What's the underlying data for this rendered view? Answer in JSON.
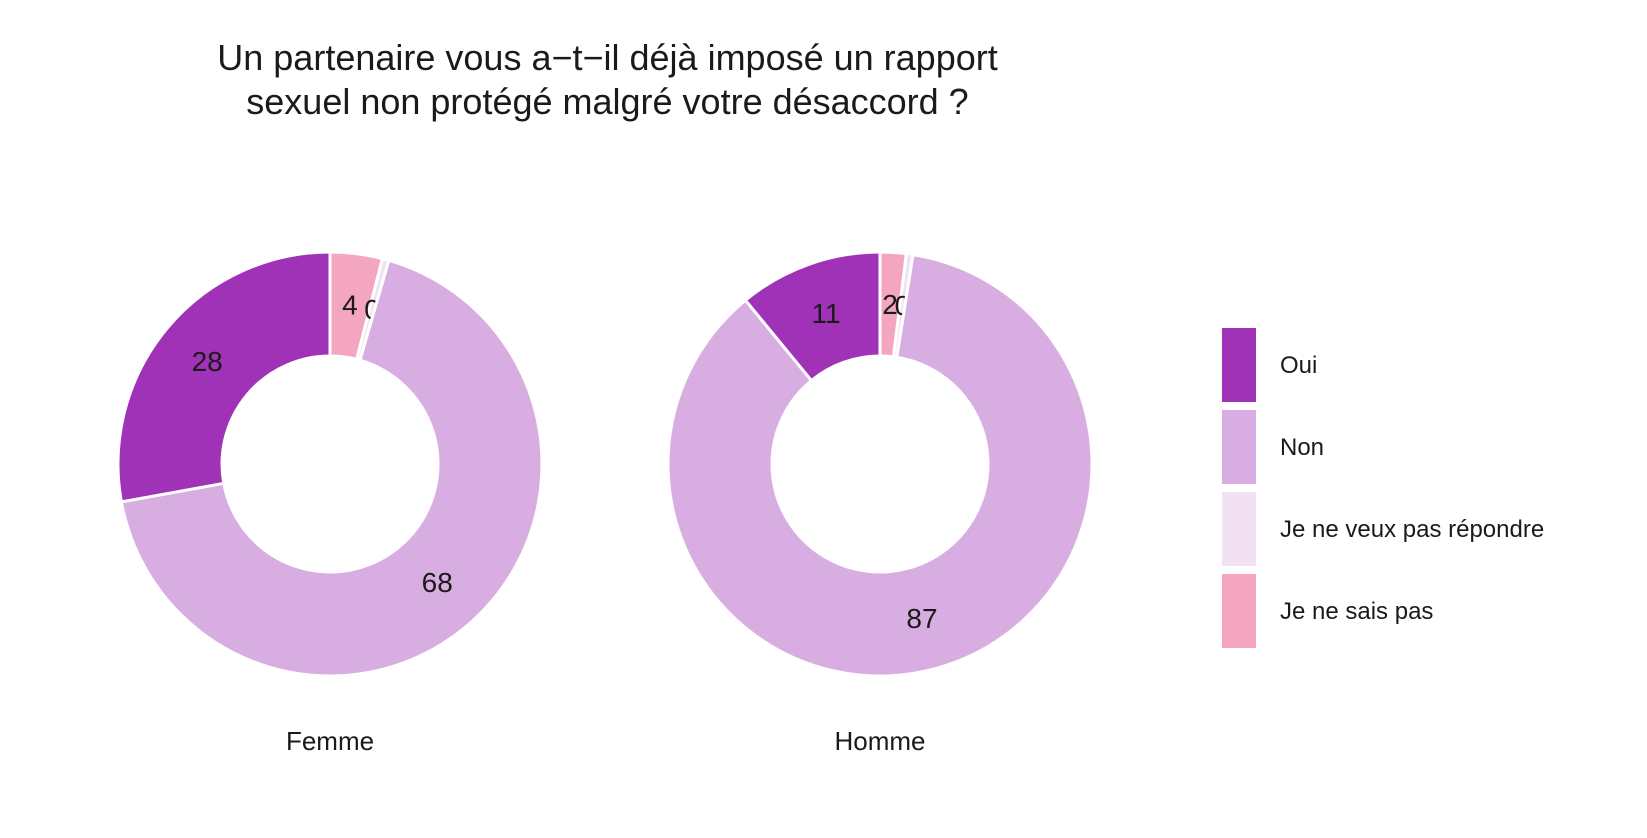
{
  "title": {
    "line1": "Un partenaire vous a−t−il déjà imposé un rapport",
    "line2": "sexuel non protégé malgré votre désaccord ?"
  },
  "chart_data": {
    "type": "pie",
    "variant": "donut",
    "categories": [
      "Oui",
      "Non",
      "Je ne veux pas répondre",
      "Je ne sais pas"
    ],
    "colors": {
      "Oui": "#a032b8",
      "Non": "#d8ade2",
      "Je ne veux pas répondre": "#f2e1f2",
      "Je ne sais pas": "#f4a6c1"
    },
    "slice_order": [
      "Je ne sais pas",
      "Je ne veux pas répondre",
      "Non",
      "Oui"
    ],
    "facets": [
      {
        "name": "Femme",
        "values": {
          "Oui": 28,
          "Non": 68,
          "Je ne veux pas répondre": 0.5,
          "Je ne sais pas": 4
        },
        "labels": {
          "Oui": "28",
          "Non": "68",
          "Je ne veux pas répondre": "0",
          "Je ne sais pas": "4"
        }
      },
      {
        "name": "Homme",
        "values": {
          "Oui": 11,
          "Non": 87,
          "Je ne veux pas répondre": 0.5,
          "Je ne sais pas": 2
        },
        "labels": {
          "Oui": "11",
          "Non": "87",
          "Je ne veux pas répondre": "0",
          "Je ne sais pas": "2"
        }
      }
    ],
    "legend_position": "right"
  }
}
